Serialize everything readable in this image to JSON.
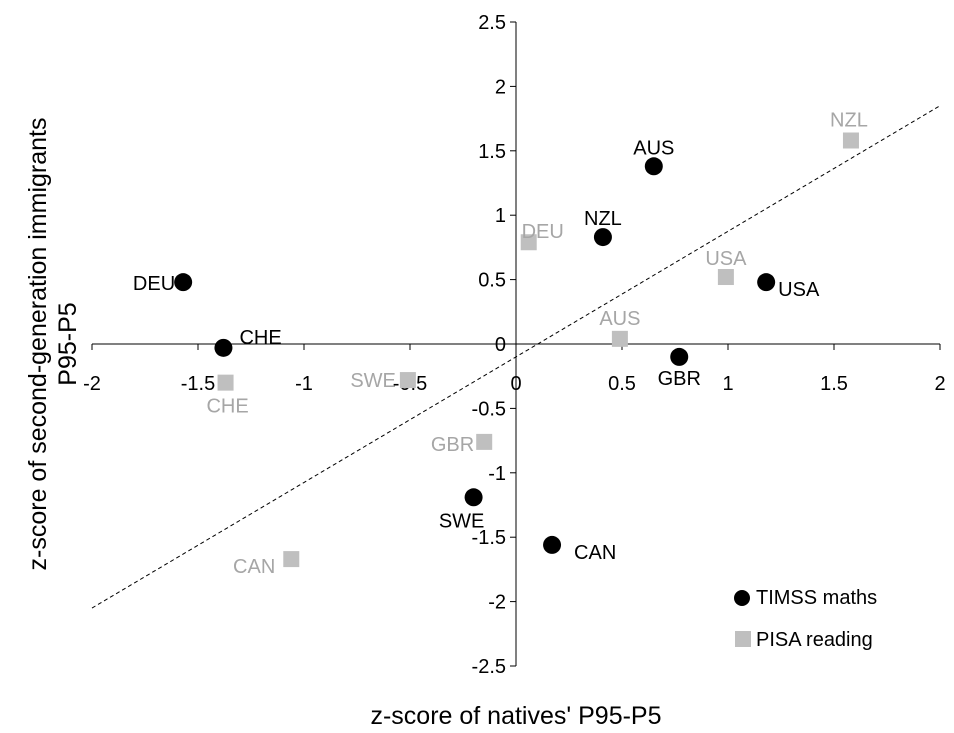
{
  "chart_data": {
    "type": "scatter",
    "xlabel": "z-score of natives' P95-P5",
    "ylabel_lines": [
      "z-score of second-generation immigrants",
      "P95-P5"
    ],
    "xlim": [
      -2,
      2
    ],
    "ylim": [
      -2.5,
      2.5
    ],
    "x_ticks": [
      "-2",
      "-1.5",
      "-1",
      "-0.5",
      "0",
      "0.5",
      "1",
      "1.5",
      "2"
    ],
    "x_tick_values": [
      -2,
      -1.5,
      -1,
      -0.5,
      0,
      0.5,
      1,
      1.5,
      2
    ],
    "y_ticks": [
      "2.5",
      "2",
      "1.5",
      "1",
      "0.5",
      "0",
      "-0.5",
      "-1",
      "-1.5",
      "-2",
      "-2.5"
    ],
    "y_tick_values": [
      2.5,
      2,
      1.5,
      1,
      0.5,
      0,
      -0.5,
      -1,
      -1.5,
      -2,
      -2.5
    ],
    "reference_line": {
      "style": "dashed",
      "slope": 1,
      "from": [
        -2,
        -2.05
      ],
      "to": [
        2,
        1.85
      ]
    },
    "legend_position": "bottom-right",
    "series": [
      {
        "name": "TIMSS maths",
        "marker": "circle",
        "color": "#000000",
        "label_color": "#000000",
        "points": [
          {
            "label": "AUS",
            "x": 0.65,
            "y": 1.38
          },
          {
            "label": "NZL",
            "x": 0.41,
            "y": 0.83
          },
          {
            "label": "DEU",
            "x": -1.57,
            "y": 0.48
          },
          {
            "label": "USA",
            "x": 1.18,
            "y": 0.48
          },
          {
            "label": "CHE",
            "x": -1.38,
            "y": -0.03
          },
          {
            "label": "GBR",
            "x": 0.77,
            "y": -0.1
          },
          {
            "label": "SWE",
            "x": -0.2,
            "y": -1.19
          },
          {
            "label": "CAN",
            "x": 0.17,
            "y": -1.56
          }
        ]
      },
      {
        "name": "PISA reading",
        "marker": "square",
        "color": "#bfbfbf",
        "label_color": "#a6a6a6",
        "points": [
          {
            "label": "NZL",
            "x": 1.58,
            "y": 1.58
          },
          {
            "label": "DEU",
            "x": 0.06,
            "y": 0.79
          },
          {
            "label": "USA",
            "x": 0.99,
            "y": 0.52
          },
          {
            "label": "AUS",
            "x": 0.49,
            "y": 0.04
          },
          {
            "label": "SWE",
            "x": -0.51,
            "y": -0.28
          },
          {
            "label": "CHE",
            "x": -1.37,
            "y": -0.3
          },
          {
            "label": "GBR",
            "x": -0.15,
            "y": -0.76
          },
          {
            "label": "CAN",
            "x": -1.06,
            "y": -1.67
          }
        ]
      }
    ]
  }
}
